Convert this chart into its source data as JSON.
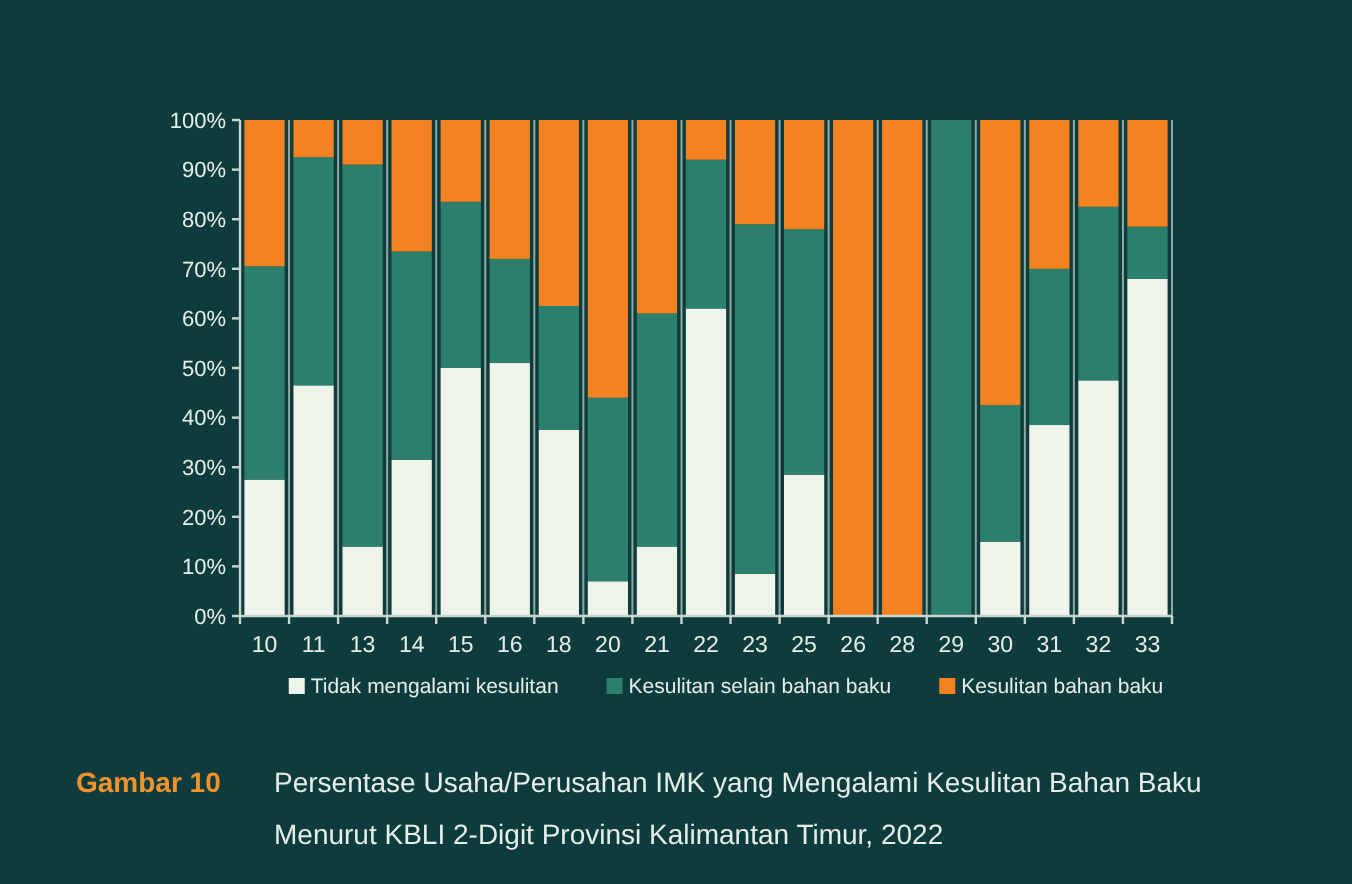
{
  "chart_data": {
    "type": "bar",
    "stacked": true,
    "title": "Persentase Usaha/Perusahan IMK yang Mengalami Kesulitan Bahan Baku Menurut KBLI 2-Digit Provinsi Kalimantan Timur, 2022",
    "annotations": [
      "Gambar 10"
    ],
    "categories": [
      "10",
      "11",
      "13",
      "14",
      "15",
      "16",
      "18",
      "20",
      "21",
      "22",
      "23",
      "25",
      "26",
      "28",
      "29",
      "30",
      "31",
      "32",
      "33"
    ],
    "series": [
      {
        "name": "Tidak mengalami kesulitan",
        "color": "#eef4ea",
        "values": [
          27.5,
          46.5,
          14,
          31.5,
          50,
          51,
          37.5,
          7,
          14,
          62,
          8.5,
          28.5,
          0,
          0,
          0,
          15,
          38.5,
          47.5,
          68
        ]
      },
      {
        "name": "Kesulitan selain bahan baku",
        "color": "#2d7f6d",
        "values": [
          43,
          46,
          77,
          42,
          33.5,
          21,
          25,
          37,
          47,
          30,
          70.5,
          49.5,
          0,
          0,
          100,
          27.5,
          31.5,
          35,
          10.5
        ]
      },
      {
        "name": "Kesulitan bahan baku",
        "color": "#f58220",
        "values": [
          29.5,
          7.5,
          9,
          26.5,
          16.5,
          28,
          37.5,
          56,
          39,
          8,
          21,
          22,
          100,
          100,
          0,
          57.5,
          30,
          17.5,
          21.5
        ]
      }
    ],
    "ylim": [
      0,
      100
    ],
    "yticks": [
      {
        "value": 0,
        "label": "0%"
      },
      {
        "value": 10,
        "label": "10%"
      },
      {
        "value": 20,
        "label": "20%"
      },
      {
        "value": 30,
        "label": "30%"
      },
      {
        "value": 40,
        "label": "40%"
      },
      {
        "value": 50,
        "label": "50%"
      },
      {
        "value": 60,
        "label": "60%"
      },
      {
        "value": 70,
        "label": "70%"
      },
      {
        "value": 80,
        "label": "80%"
      },
      {
        "value": 90,
        "label": "90%"
      },
      {
        "value": 100,
        "label": "100%"
      }
    ],
    "grid": "x",
    "legend": "bottom"
  }
}
